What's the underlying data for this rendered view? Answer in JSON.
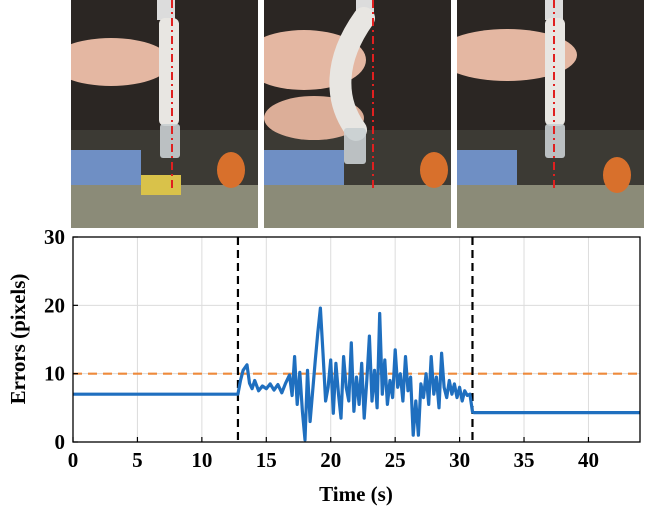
{
  "photos": [
    {
      "name": "photo-rest",
      "bend": 0
    },
    {
      "name": "photo-pressed",
      "bend": 1
    },
    {
      "name": "photo-released",
      "bend": 0
    }
  ],
  "chart_data": {
    "type": "line",
    "title": "",
    "xlabel": "Time (s)",
    "ylabel": "Errors (pixels)",
    "xlim": [
      0,
      44
    ],
    "ylim": [
      0,
      30
    ],
    "xticks": [
      0,
      5,
      10,
      15,
      20,
      25,
      30,
      35,
      40
    ],
    "yticks": [
      0,
      10,
      20,
      30
    ],
    "grid": true,
    "threshold": {
      "y": 10,
      "color": "#ee8a3c",
      "style": "dashed"
    },
    "event_lines": [
      {
        "x": 12.8,
        "color": "#000000",
        "style": "dashed"
      },
      {
        "x": 31.0,
        "color": "#000000",
        "style": "dashed"
      }
    ],
    "series": [
      {
        "color": "#1f6fbf",
        "x": [
          0,
          12.8,
          13.0,
          13.2,
          13.5,
          13.7,
          13.9,
          14.1,
          14.4,
          14.7,
          15.0,
          15.3,
          15.6,
          15.9,
          16.2,
          16.5,
          16.8,
          17.0,
          17.2,
          17.4,
          17.6,
          17.8,
          18.0,
          18.2,
          18.4,
          18.6,
          18.8,
          19.0,
          19.2,
          19.4,
          19.6,
          19.8,
          20.0,
          20.2,
          20.4,
          20.6,
          20.8,
          21.0,
          21.2,
          21.4,
          21.6,
          21.8,
          22.0,
          22.2,
          22.4,
          22.6,
          22.8,
          23.0,
          23.2,
          23.4,
          23.6,
          23.8,
          24.0,
          24.2,
          24.4,
          24.6,
          24.8,
          25.0,
          25.2,
          25.4,
          25.6,
          25.8,
          26.0,
          26.2,
          26.4,
          26.6,
          26.8,
          27.0,
          27.2,
          27.4,
          27.6,
          27.8,
          28.0,
          28.2,
          28.4,
          28.6,
          28.8,
          29.0,
          29.2,
          29.4,
          29.6,
          29.8,
          30.0,
          30.2,
          30.4,
          30.6,
          30.8,
          31.0,
          31.1,
          44
        ],
        "y": [
          7.0,
          7.0,
          9.0,
          10.5,
          11.3,
          8.6,
          7.8,
          9.0,
          7.5,
          8.2,
          7.8,
          8.5,
          7.6,
          8.4,
          7.2,
          8.6,
          9.8,
          6.8,
          12.5,
          5.5,
          10.2,
          4.5,
          0.3,
          10.5,
          3.0,
          7.5,
          12.0,
          16.0,
          19.6,
          13.0,
          6.0,
          8.0,
          12.0,
          4.2,
          11.5,
          7.0,
          3.5,
          12.5,
          8.0,
          6.0,
          14.5,
          4.5,
          9.5,
          5.5,
          11.5,
          3.5,
          9.0,
          15.5,
          6.0,
          10.5,
          5.0,
          18.8,
          7.0,
          12.0,
          5.5,
          9.0,
          6.5,
          13.5,
          8.0,
          10.0,
          6.0,
          12.5,
          7.5,
          9.5,
          1.0,
          6.0,
          1.0,
          8.5,
          6.5,
          10.0,
          5.5,
          12.5,
          7.0,
          9.5,
          5.0,
          13.0,
          8.0,
          6.5,
          9.0,
          7.0,
          8.5,
          6.5,
          8.0,
          6.0,
          7.5,
          6.8,
          7.0,
          4.4,
          4.3,
          4.3
        ]
      }
    ]
  }
}
